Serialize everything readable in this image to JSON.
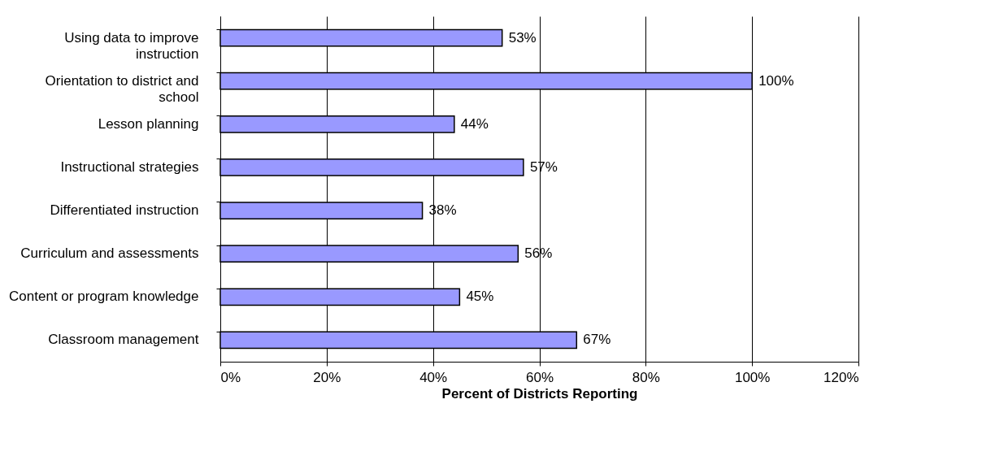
{
  "chart_data": {
    "type": "bar",
    "orientation": "horizontal",
    "xlabel": "Percent of Districts Reporting",
    "categories": [
      "Using data to improve instruction",
      "Orientation to district and school",
      "Lesson planning",
      "Instructional strategies",
      "Differentiated instruction",
      "Curriculum and assessments",
      "Content or program knowledge",
      "Classroom management"
    ],
    "values": [
      53,
      100,
      44,
      57,
      38,
      56,
      45,
      67
    ],
    "value_labels": [
      "53%",
      "100%",
      "44%",
      "57%",
      "38%",
      "56%",
      "45%",
      "67%"
    ],
    "color": "#9999ff",
    "xlim": [
      0,
      120
    ],
    "xticks": [
      {
        "value": 0,
        "label": "0%"
      },
      {
        "value": 20,
        "label": "20%"
      },
      {
        "value": 40,
        "label": "40%"
      },
      {
        "value": 60,
        "label": "60%"
      },
      {
        "value": 80,
        "label": "80%"
      },
      {
        "value": 100,
        "label": "100%"
      },
      {
        "value": 120,
        "label": "120%"
      }
    ],
    "grid": "x"
  }
}
